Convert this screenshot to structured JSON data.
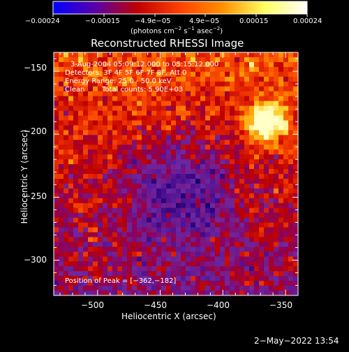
{
  "chart_data": {
    "type": "heatmap",
    "title": "Reconstructed RHESSI Image",
    "xlabel": "Heliocentric X (arcsec)",
    "ylabel": "Heliocentric Y (arcsec)",
    "xlim": [
      -535,
      -340
    ],
    "ylim": [
      -328,
      -135
    ],
    "x_ticks": [
      -500,
      -450,
      -400,
      -350
    ],
    "x_tick_labels": [
      "−500",
      "−450",
      "−400",
      "−350"
    ],
    "y_ticks": [
      -150,
      -200,
      -250,
      -300
    ],
    "y_tick_labels": [
      "−150",
      "−200",
      "−250",
      "−300"
    ],
    "colorbar": {
      "range": [
        -0.00024,
        0.00024
      ],
      "tick_labels": [
        "−0.00024",
        "−0.00015",
        "−4.9e−05",
        "4.9e−05",
        "0.00015",
        "0.00024"
      ],
      "units_prefix": "(photons cm",
      "units_exp1": "−2",
      "units_mid": " s",
      "units_exp2": "−1",
      "units_mid2": " asec",
      "units_exp3": "−2",
      "units_suffix": ")",
      "colors": [
        "#0000ff",
        "#5a00a8",
        "#c00000",
        "#ff4000",
        "#ff9000",
        "#ffff60",
        "#ffffff"
      ]
    },
    "annotations": {
      "time_range": "3-Aug-2004 05:09:12.000 to 05:15:12.000",
      "detectors": "Detectors: 3F 4F 5F 6F 7F 8F, Att 0",
      "energy": "Energy Range: 25.0 - 50.0 keV",
      "clean_label": "Clean",
      "total_counts": "Total counts: 5.90E+03",
      "peak": "Position of Peak = [−362,−182]"
    },
    "peak_position": [
      -362,
      -182
    ]
  },
  "footer": {
    "timestamp": "2−May−2022 13:54"
  }
}
